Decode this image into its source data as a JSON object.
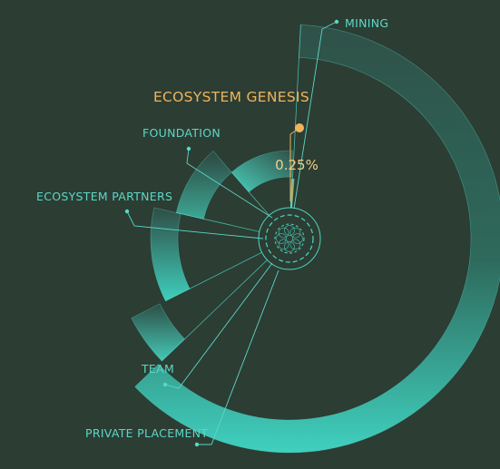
{
  "chart_data": {
    "type": "pie",
    "title": "",
    "highlight": {
      "label": "ECOSYSTEM GENESIS",
      "value_text": "0.25%"
    },
    "slices": [
      {
        "label": "MINING",
        "value": 62.0
      },
      {
        "label": "PRIVATE PLACEMENT",
        "value": 4.75
      },
      {
        "label": "TEAM",
        "value": 11.0
      },
      {
        "label": "ECOSYSTEM PARTNERS",
        "value": 10.0
      },
      {
        "label": "FOUNDATION",
        "value": 12.0
      },
      {
        "label": "ECOSYSTEM GENESIS",
        "value": 0.25
      }
    ]
  },
  "colors": {
    "background": "#2c3d33",
    "teal": "#3fd0bf",
    "teal_dark": "#2f5148",
    "highlight": "#f0b35c"
  }
}
